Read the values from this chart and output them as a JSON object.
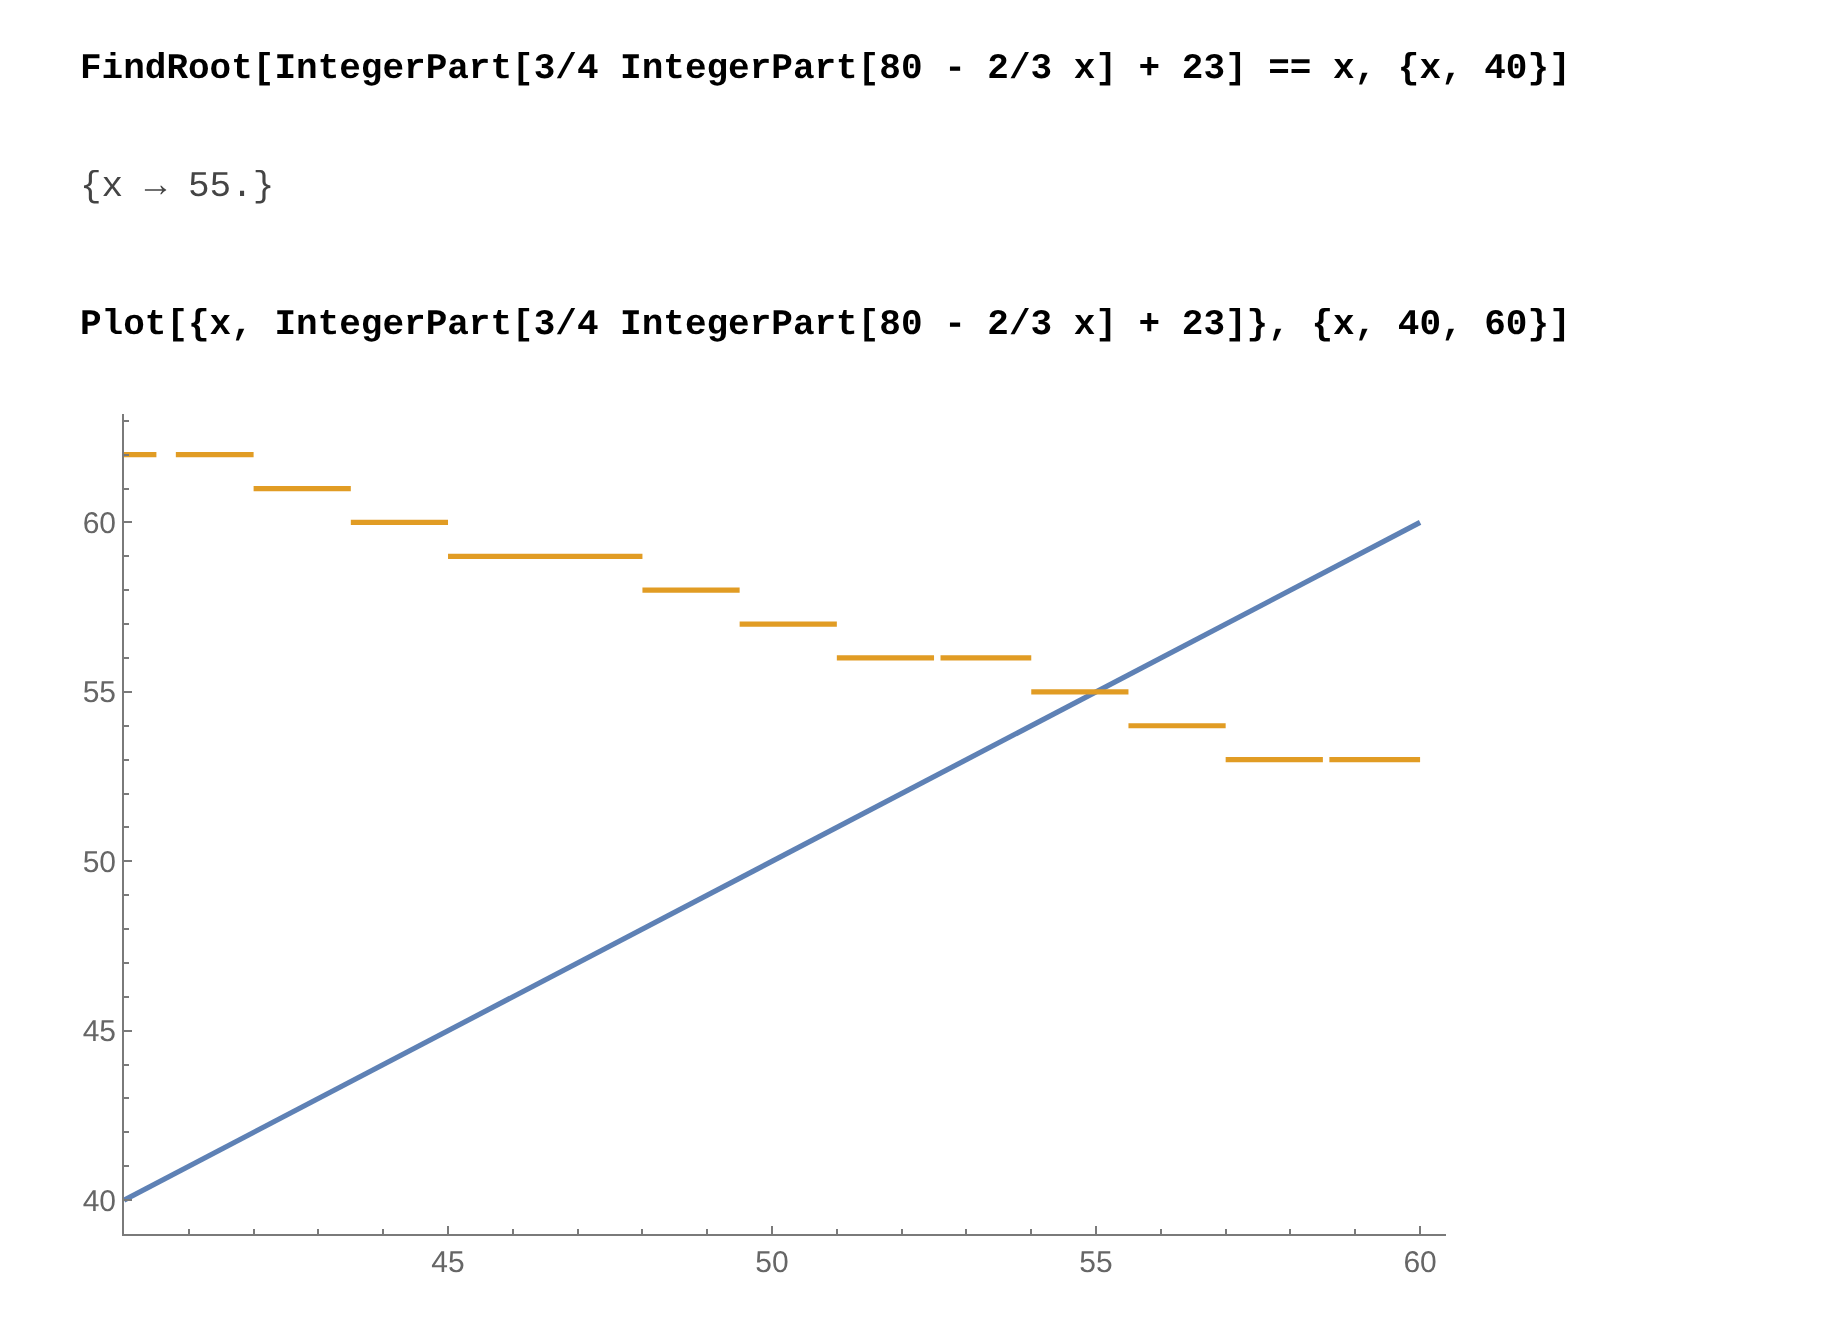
{
  "chart_data": {
    "type": "line",
    "annotations": [
      "FindRoot[IntegerPart[3/4 IntegerPart[80 - 2/3 x] + 23] == x, {x, 40}]",
      "{x → 55.}",
      "Plot[{x, IntegerPart[3/4 IntegerPart[80 - 2/3 x] + 23]}, {x, 40, 60}]"
    ],
    "series": [
      {
        "color": "#5e81b5",
        "x": [
          40,
          60
        ],
        "values": [
          40,
          60
        ]
      },
      {
        "color": "#e19c24",
        "x": [
          40,
          40.5,
          null,
          40.8,
          42,
          null,
          42,
          43.5,
          null,
          43.5,
          45,
          null,
          45,
          48,
          null,
          48,
          49.5,
          null,
          49.5,
          51,
          null,
          51,
          52.5,
          null,
          52.6,
          54,
          null,
          54,
          55.5,
          null,
          55.5,
          57,
          null,
          57,
          58.5,
          null,
          58.6,
          60
        ],
        "values": [
          62,
          62,
          null,
          62,
          62,
          null,
          61,
          61,
          null,
          60,
          60,
          null,
          59,
          59,
          null,
          58,
          58,
          null,
          57,
          57,
          null,
          56,
          56,
          null,
          56,
          56,
          null,
          55,
          55,
          null,
          54,
          54,
          null,
          53,
          53,
          null,
          53,
          53
        ]
      }
    ],
    "xlim": [
      40,
      60.4
    ],
    "ylim": [
      39,
      63.2
    ],
    "xticks": [
      {
        "value": 41,
        "label": null
      },
      {
        "value": 42,
        "label": null
      },
      {
        "value": 43,
        "label": null
      },
      {
        "value": 44,
        "label": null
      },
      45,
      {
        "value": 46,
        "label": null
      },
      {
        "value": 47,
        "label": null
      },
      {
        "value": 48,
        "label": null
      },
      {
        "value": 49,
        "label": null
      },
      50,
      {
        "value": 51,
        "label": null
      },
      {
        "value": 52,
        "label": null
      },
      {
        "value": 53,
        "label": null
      },
      {
        "value": 54,
        "label": null
      },
      55,
      {
        "value": 56,
        "label": null
      },
      {
        "value": 57,
        "label": null
      },
      {
        "value": 58,
        "label": null
      },
      {
        "value": 59,
        "label": null
      },
      60
    ],
    "yticks": [
      40,
      {
        "value": 41,
        "label": null
      },
      {
        "value": 42,
        "label": null
      },
      {
        "value": 43,
        "label": null
      },
      {
        "value": 44,
        "label": null
      },
      45,
      {
        "value": 46,
        "label": null
      },
      {
        "value": 47,
        "label": null
      },
      {
        "value": 48,
        "label": null
      },
      {
        "value": 49,
        "label": null
      },
      50,
      {
        "value": 51,
        "label": null
      },
      {
        "value": 52,
        "label": null
      },
      {
        "value": 53,
        "label": null
      },
      {
        "value": 54,
        "label": null
      },
      55,
      {
        "value": 56,
        "label": null
      },
      {
        "value": 57,
        "label": null
      },
      {
        "value": 58,
        "label": null
      },
      {
        "value": 59,
        "label": null
      },
      60,
      {
        "value": 61,
        "label": null
      },
      {
        "value": 62,
        "label": null
      },
      {
        "value": 63,
        "label": null
      }
    ]
  }
}
